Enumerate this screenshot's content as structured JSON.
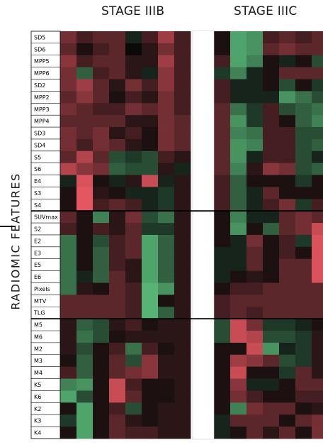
{
  "chart_data": {
    "type": "heatmap",
    "title_left": "STAGE IIIB",
    "title_right": "STAGE IIIC",
    "ylabel": "RADIOMIC  FEATURES",
    "rows": [
      "SD5",
      "SD6",
      "MPP5",
      "MPP6",
      "SD2",
      "MPP2",
      "MPP3",
      "MPP4",
      "SD3",
      "SD4",
      "S5",
      "S6",
      "E4",
      "S3",
      "S4",
      "SUVmax",
      "S2",
      "E2",
      "E3",
      "E5",
      "E6",
      "Pixels",
      "MTV",
      "TLG",
      "M5",
      "M6",
      "M2",
      "M3",
      "M4",
      "K5",
      "K6",
      "K2",
      "K3",
      "K4"
    ],
    "row_groups": [
      15,
      9,
      10
    ],
    "columns_per_stage": 8,
    "color_scale": {
      "negative": "#5ec47f",
      "zero": "#0a0a0a",
      "positive": "#ee5a64"
    },
    "value_range": [
      -1,
      1
    ],
    "values_stage_IIIB": [
      [
        0.4,
        0.2,
        0.3,
        0.3,
        -0.1,
        0.2,
        0.6,
        0.2
      ],
      [
        0.3,
        0.05,
        0.2,
        0.3,
        0,
        0.1,
        0.4,
        0.2
      ],
      [
        0.5,
        0.2,
        0.3,
        0.3,
        0.1,
        0.1,
        0.6,
        0.2
      ],
      [
        0.4,
        -0.4,
        0.2,
        0.3,
        0.1,
        -0.1,
        0.5,
        0.2
      ],
      [
        0.4,
        0.6,
        0.3,
        0.1,
        0.4,
        0.2,
        0.5,
        0.2
      ],
      [
        0.3,
        0.5,
        0.3,
        0.05,
        0.2,
        0.1,
        0.4,
        0.2
      ],
      [
        0.4,
        0.3,
        0.2,
        0.2,
        0.4,
        0.3,
        0.4,
        0.2
      ],
      [
        0.3,
        0.3,
        0.3,
        0.3,
        0.1,
        0.1,
        0.4,
        0.3
      ],
      [
        0.4,
        0.3,
        0.4,
        0.1,
        0.2,
        0.05,
        0.4,
        0.3
      ],
      [
        0.4,
        0.2,
        0.4,
        0.3,
        0.1,
        0.05,
        0.4,
        0.3
      ],
      [
        0.3,
        0.7,
        0.3,
        -0.3,
        -0.2,
        -0.3,
        0.2,
        0.1
      ],
      [
        0.7,
        0.5,
        0.4,
        -0.4,
        -0.3,
        -0.3,
        0.1,
        -0.1
      ],
      [
        -0.1,
        0.9,
        0.05,
        -0.1,
        0.1,
        0.8,
        -0.1,
        0.1
      ],
      [
        0.05,
        0.95,
        0.1,
        0.05,
        -0.1,
        -0.1,
        -0.2,
        0.1
      ],
      [
        0.05,
        0.95,
        0.2,
        0.3,
        0.2,
        -0.1,
        -0.2,
        0.1
      ],
      [
        0.3,
        0.05,
        -0.6,
        0.1,
        0.4,
        -0.3,
        -0.5,
        0.1
      ],
      [
        0.2,
        0.05,
        0.2,
        0.1,
        0.3,
        -0.2,
        -0.2,
        0.1
      ],
      [
        -0.5,
        0.05,
        -0.3,
        0.2,
        0.3,
        -0.8,
        -0.4,
        0.1
      ],
      [
        -0.5,
        0.05,
        -0.4,
        0.2,
        0.3,
        -0.8,
        -0.4,
        0.1
      ],
      [
        -0.5,
        0.05,
        -0.4,
        0.2,
        0.1,
        -0.8,
        -0.4,
        0.1
      ],
      [
        -0.5,
        -0.1,
        -0.4,
        0.3,
        0.1,
        -0.8,
        -0.4,
        0.1
      ],
      [
        -0.5,
        0.1,
        0.05,
        0.3,
        0.2,
        -0.9,
        -0.7,
        0.1
      ],
      [
        0.3,
        0.3,
        0.3,
        0.3,
        0.2,
        -0.9,
        0.05,
        0.1
      ],
      [
        0.3,
        0.3,
        0.3,
        0.3,
        0.2,
        -0.9,
        -0.4,
        0.1
      ],
      [
        0.1,
        -0.4,
        -0.3,
        0.1,
        0.2,
        0.05,
        0.1,
        0.1
      ],
      [
        0.1,
        -0.5,
        -0.3,
        0.05,
        0.1,
        0.1,
        0.1,
        0.1
      ],
      [
        0.1,
        -0.3,
        0.05,
        0.2,
        -0.5,
        0.2,
        0.05,
        0.1
      ],
      [
        0.05,
        -0.4,
        0.05,
        0.3,
        -0.3,
        0.5,
        0.1,
        0.1
      ],
      [
        0.2,
        -0.4,
        0.05,
        0.3,
        0.4,
        0.5,
        0.1,
        0.1
      ],
      [
        -0.6,
        -0.7,
        0.05,
        0.8,
        0.2,
        0.05,
        0.05,
        0.1
      ],
      [
        -0.8,
        -0.3,
        0.05,
        0.8,
        0.3,
        0.05,
        0.05,
        0.1
      ],
      [
        0.05,
        -0.8,
        0.05,
        0.2,
        -0.3,
        0.05,
        0.1,
        0.1
      ],
      [
        -0.2,
        -0.8,
        0.05,
        0.3,
        0.1,
        0.05,
        0.1,
        0.1
      ],
      [
        0.05,
        -0.8,
        0.05,
        0.3,
        0.2,
        0.2,
        0.1,
        0.1
      ]
    ],
    "values_stage_IIIC": [
      [
        0.05,
        -0.8,
        -0.7,
        0.2,
        0.3,
        0.2,
        0.3,
        0.1
      ],
      [
        0.05,
        -0.8,
        -0.7,
        0.3,
        0.4,
        0.3,
        0.3,
        0.3
      ],
      [
        0.2,
        -0.8,
        -0.6,
        0.05,
        -0.1,
        0.05,
        -0.3,
        0.1
      ],
      [
        -0.2,
        -0.6,
        -0.1,
        0.05,
        0.3,
        0.3,
        0.3,
        0.3
      ],
      [
        0.2,
        -0.1,
        -0.1,
        0.05,
        -0.3,
        0.05,
        -0.2,
        0.05
      ],
      [
        0.2,
        -0.1,
        -0.1,
        -0.1,
        -0.7,
        -0.5,
        -0.3,
        0.05
      ],
      [
        0.3,
        -0.5,
        -0.2,
        0.2,
        -0.3,
        -0.4,
        -0.5,
        0.05
      ],
      [
        0.3,
        -0.7,
        -0.2,
        0.2,
        0.05,
        -0.4,
        -0.6,
        0.05
      ],
      [
        0.3,
        -0.6,
        -0.5,
        0.2,
        0.2,
        -0.3,
        -0.3,
        0.05
      ],
      [
        0.3,
        -0.7,
        -0.6,
        0.2,
        0.2,
        -0.3,
        -0.4,
        0.05
      ],
      [
        0.3,
        -0.7,
        -0.1,
        0.2,
        0.2,
        -0.3,
        -0.1,
        0.05
      ],
      [
        0.3,
        -0.6,
        0.1,
        0.5,
        0.4,
        -0.3,
        -0.4,
        0.05
      ],
      [
        0.2,
        -0.4,
        0.05,
        0.05,
        0.05,
        -0.2,
        0.05,
        0.05
      ],
      [
        0.2,
        -0.4,
        -0.1,
        0.3,
        0.05,
        0.05,
        0.05,
        0.05
      ],
      [
        0.2,
        -0.4,
        -0.1,
        0.2,
        0.4,
        -0.2,
        0.2,
        0.05
      ],
      [
        0.05,
        -0.6,
        -0.1,
        -0.1,
        0.3,
        0.4,
        0.3,
        0.2
      ],
      [
        0.05,
        -0.7,
        0.05,
        -0.4,
        0.3,
        0.4,
        0.8,
        0.2
      ],
      [
        0.05,
        -0.1,
        0.4,
        0.05,
        0.2,
        -0.2,
        0.9,
        0.2
      ],
      [
        -0.1,
        -0.1,
        0.3,
        0.05,
        0.2,
        0.05,
        0.9,
        0.2
      ],
      [
        -0.1,
        -0.1,
        0.3,
        0.05,
        0.3,
        0.3,
        0.9,
        0.2
      ],
      [
        -0.1,
        0.05,
        0.1,
        0.05,
        0.3,
        0.3,
        0.9,
        0.2
      ],
      [
        0.05,
        0.2,
        0.2,
        0.3,
        0.3,
        0.3,
        0.3,
        0.2
      ],
      [
        0.2,
        0.3,
        0.3,
        0.3,
        0.3,
        0.3,
        0.3,
        0.2
      ],
      [
        0.2,
        0.3,
        0.2,
        0.3,
        0.3,
        0.3,
        0.3,
        0.2
      ],
      [
        -0.3,
        0.8,
        0.4,
        -0.2,
        -0.2,
        -0.1,
        0.05,
        0.1
      ],
      [
        -0.3,
        0.8,
        0.7,
        -0.3,
        -0.3,
        -0.2,
        0.1,
        0.1
      ],
      [
        0.05,
        0.05,
        0.8,
        -0.7,
        -0.1,
        -0.2,
        0.1,
        0.1
      ],
      [
        0.05,
        0.6,
        0.5,
        0.3,
        -0.3,
        -0.2,
        0.1,
        0.1
      ],
      [
        0.05,
        0.8,
        0.05,
        0.05,
        -0.2,
        0.3,
        0.1,
        0.1
      ],
      [
        0.05,
        0.5,
        -0.1,
        -0.1,
        0.05,
        0.3,
        0.3,
        0.1
      ],
      [
        0.05,
        0.4,
        0.2,
        0.05,
        0.05,
        0.2,
        0.2,
        0.1
      ],
      [
        0.05,
        -0.6,
        0.4,
        0.3,
        0.3,
        0.05,
        0.1,
        0.1
      ],
      [
        -0.1,
        0.3,
        0.3,
        0.3,
        0.05,
        0.3,
        0.4,
        0.1
      ],
      [
        -0.1,
        0.05,
        0.3,
        0.1,
        0.3,
        0.05,
        0.4,
        0.1
      ]
    ]
  }
}
